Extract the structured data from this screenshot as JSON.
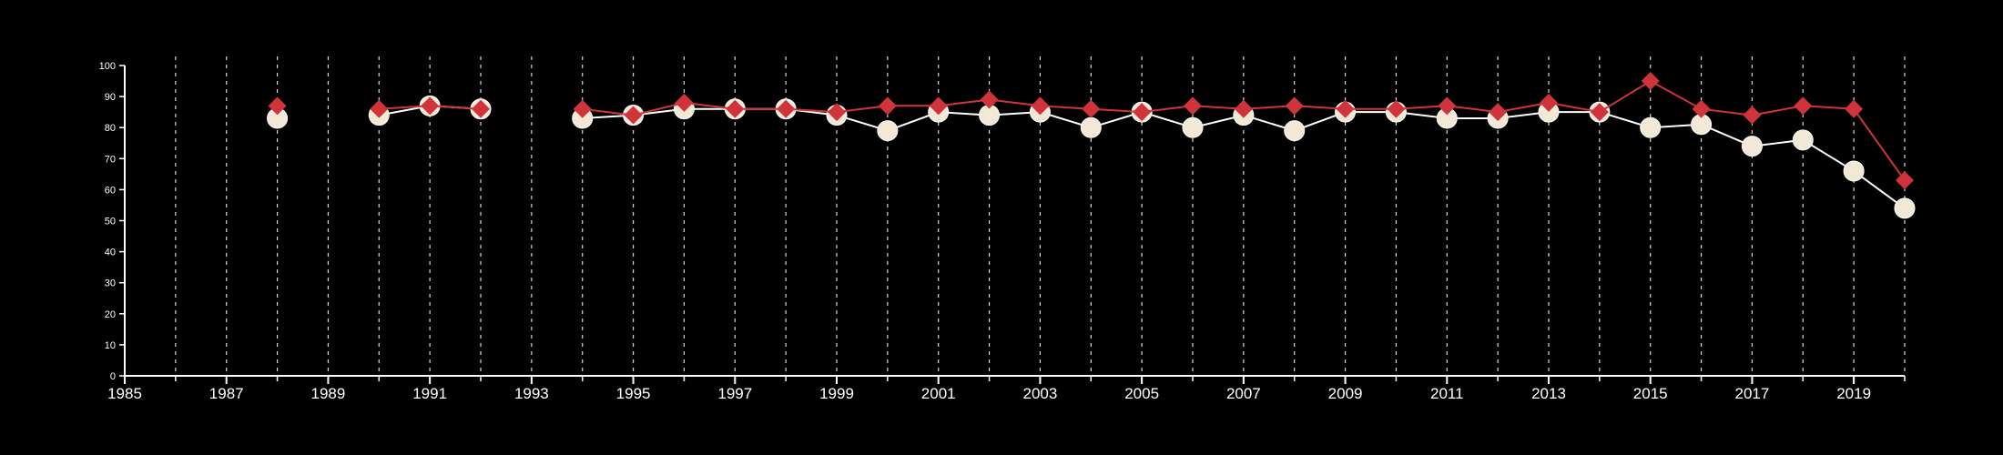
{
  "chart_data": {
    "type": "line",
    "title": "",
    "xlabel": "",
    "ylabel": "",
    "xlim": [
      1985,
      2020
    ],
    "ylim": [
      0,
      100
    ],
    "x_ticks": [
      "1985",
      "1987",
      "1989",
      "1991",
      "1993",
      "1995",
      "1997",
      "1999",
      "2001",
      "2003",
      "2005",
      "2007",
      "2009",
      "2011",
      "2013",
      "2015",
      "2017",
      "2019"
    ],
    "y_ticks": [
      "0",
      "10",
      "20",
      "30",
      "40",
      "50",
      "60",
      "70",
      "80",
      "90",
      "100"
    ],
    "grid": "vertical dashed lines at each year",
    "background": "#000000",
    "series": [
      {
        "color": "#f2e8d5",
        "line_color": "#ffffff",
        "marker": "circle",
        "points": [
          {
            "x": 1988,
            "y": 83
          },
          {
            "x": 1990,
            "y": 84
          },
          {
            "x": 1991,
            "y": 87
          },
          {
            "x": 1992,
            "y": 86
          },
          {
            "x": 1994,
            "y": 83
          },
          {
            "x": 1995,
            "y": 84
          },
          {
            "x": 1996,
            "y": 86
          },
          {
            "x": 1997,
            "y": 86
          },
          {
            "x": 1998,
            "y": 86
          },
          {
            "x": 1999,
            "y": 84
          },
          {
            "x": 2000,
            "y": 79
          },
          {
            "x": 2001,
            "y": 85
          },
          {
            "x": 2002,
            "y": 84
          },
          {
            "x": 2003,
            "y": 85
          },
          {
            "x": 2004,
            "y": 80
          },
          {
            "x": 2005,
            "y": 85
          },
          {
            "x": 2006,
            "y": 80
          },
          {
            "x": 2007,
            "y": 84
          },
          {
            "x": 2008,
            "y": 79
          },
          {
            "x": 2009,
            "y": 85
          },
          {
            "x": 2010,
            "y": 85
          },
          {
            "x": 2011,
            "y": 83
          },
          {
            "x": 2012,
            "y": 83
          },
          {
            "x": 2013,
            "y": 85
          },
          {
            "x": 2014,
            "y": 85
          },
          {
            "x": 2015,
            "y": 80
          },
          {
            "x": 2016,
            "y": 81
          },
          {
            "x": 2017,
            "y": 74
          },
          {
            "x": 2018,
            "y": 76
          },
          {
            "x": 2019,
            "y": 66
          },
          {
            "x": 2020,
            "y": 54
          }
        ]
      },
      {
        "color": "#d0343a",
        "line_color": "#d0343a",
        "marker": "diamond",
        "points": [
          {
            "x": 1988,
            "y": 87
          },
          {
            "x": 1990,
            "y": 86
          },
          {
            "x": 1991,
            "y": 87
          },
          {
            "x": 1992,
            "y": 86
          },
          {
            "x": 1994,
            "y": 86
          },
          {
            "x": 1995,
            "y": 84
          },
          {
            "x": 1996,
            "y": 88
          },
          {
            "x": 1997,
            "y": 86
          },
          {
            "x": 1998,
            "y": 86
          },
          {
            "x": 1999,
            "y": 85
          },
          {
            "x": 2000,
            "y": 87
          },
          {
            "x": 2001,
            "y": 87
          },
          {
            "x": 2002,
            "y": 89
          },
          {
            "x": 2003,
            "y": 87
          },
          {
            "x": 2004,
            "y": 86
          },
          {
            "x": 2005,
            "y": 85
          },
          {
            "x": 2006,
            "y": 87
          },
          {
            "x": 2007,
            "y": 86
          },
          {
            "x": 2008,
            "y": 87
          },
          {
            "x": 2009,
            "y": 86
          },
          {
            "x": 2010,
            "y": 86
          },
          {
            "x": 2011,
            "y": 87
          },
          {
            "x": 2012,
            "y": 85
          },
          {
            "x": 2013,
            "y": 88
          },
          {
            "x": 2014,
            "y": 85
          },
          {
            "x": 2015,
            "y": 95
          },
          {
            "x": 2016,
            "y": 86
          },
          {
            "x": 2017,
            "y": 84
          },
          {
            "x": 2018,
            "y": 87
          },
          {
            "x": 2019,
            "y": 86
          },
          {
            "x": 2020,
            "y": 63
          }
        ]
      }
    ]
  }
}
